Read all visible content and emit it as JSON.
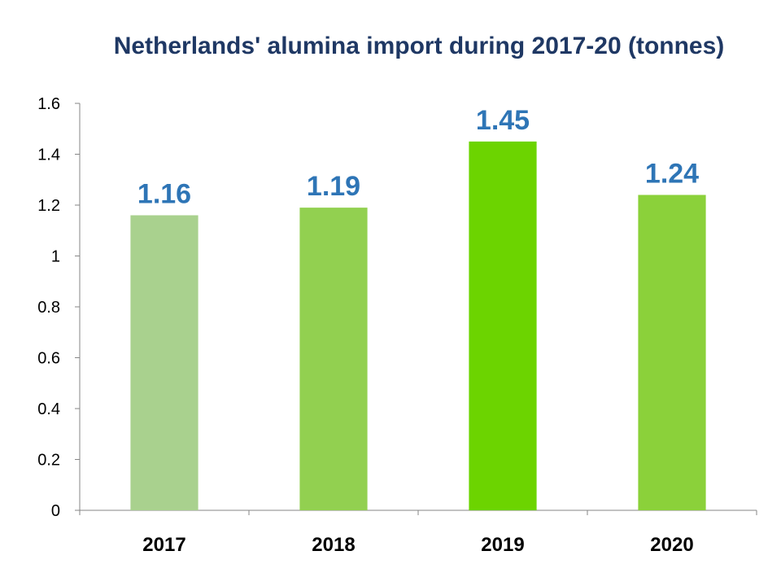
{
  "chart_data": {
    "type": "bar",
    "title": "Netherlands' alumina import during 2017-20 (tonnes)",
    "categories": [
      "2017",
      "2018",
      "2019",
      "2020"
    ],
    "values": [
      1.16,
      1.19,
      1.45,
      1.24
    ],
    "data_labels": [
      "1.16",
      "1.19",
      "1.45",
      "1.24"
    ],
    "bar_colors": [
      "#a9d18e",
      "#92d050",
      "#6cd400",
      "#8bd13a"
    ],
    "data_label_color": "#2e75b6",
    "axis_color": "#868686",
    "ylim": [
      0,
      1.6
    ],
    "yticks": [
      0,
      0.2,
      0.4,
      0.6,
      0.8,
      1,
      1.2,
      1.4,
      1.6
    ],
    "ytick_labels": [
      "0",
      "0.2",
      "0.4",
      "0.6",
      "0.8",
      "1",
      "1.2",
      "1.4",
      "1.6"
    ],
    "grid": false,
    "legend": "none"
  }
}
